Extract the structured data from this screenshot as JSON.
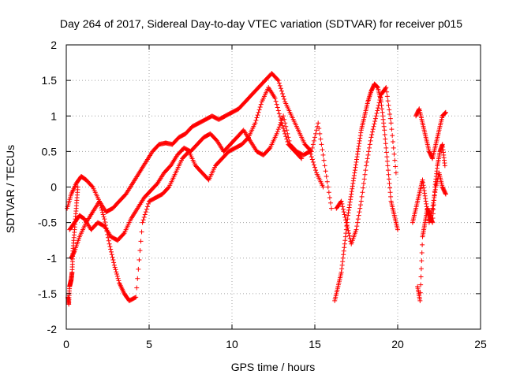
{
  "chart_data": {
    "type": "scatter",
    "title": "Day 264 of 2017, Sidereal Day-to-day VTEC variation (SDTVAR) for receiver p015",
    "xlabel": "GPS time / hours",
    "ylabel": "SDTVAR / TECUs",
    "xlim": [
      0,
      25
    ],
    "ylim": [
      -2,
      2
    ],
    "xticks": [
      "0",
      "5",
      "10",
      "15",
      "20",
      "25"
    ],
    "yticks": [
      "-2",
      "-1.5",
      "-1",
      "-0.5",
      "0",
      "0.5",
      "1",
      "1.5",
      "2"
    ],
    "grid": true,
    "marker": "+",
    "color": "#ff0000",
    "series": [
      {
        "name": "track-a",
        "x": [
          0.05,
          0.3,
          0.6,
          0.9,
          1.2,
          1.6,
          2.0,
          2.4,
          2.8,
          3.2,
          3.6,
          4.0,
          4.4,
          4.8,
          5.2,
          5.6,
          6.0,
          6.4,
          6.8,
          7.2,
          7.6,
          8.0,
          8.4,
          8.8,
          9.2,
          9.6,
          10.0,
          10.4,
          10.8,
          11.2,
          11.6,
          12.0,
          12.4,
          12.8,
          13.2,
          13.6,
          14.0,
          14.4,
          14.8,
          15.2,
          15.6,
          16.0
        ],
        "y": [
          -0.3,
          -0.1,
          0.05,
          0.15,
          0.1,
          0.0,
          -0.2,
          -0.35,
          -0.3,
          -0.2,
          -0.1,
          0.05,
          0.2,
          0.35,
          0.5,
          0.6,
          0.62,
          0.6,
          0.7,
          0.75,
          0.85,
          0.9,
          0.95,
          1.0,
          0.95,
          1.0,
          1.05,
          1.1,
          1.2,
          1.3,
          1.4,
          1.5,
          1.6,
          1.5,
          1.2,
          1.0,
          0.8,
          0.6,
          0.5,
          0.9,
          0.3,
          -0.3
        ]
      },
      {
        "name": "track-b",
        "x": [
          0.2,
          0.5,
          0.8,
          1.1,
          1.5,
          1.9,
          2.3,
          2.7,
          3.1,
          3.5,
          3.9,
          4.3,
          4.7,
          5.1,
          5.5,
          5.9,
          6.3,
          6.7,
          7.1,
          7.5,
          7.9,
          8.3,
          8.7,
          9.1,
          9.5,
          9.9,
          10.3,
          10.7,
          11.1,
          11.5,
          11.9,
          12.3,
          12.7,
          13.1,
          13.5,
          13.9,
          14.3,
          14.7,
          15.1,
          15.5
        ],
        "y": [
          -0.6,
          -0.5,
          -0.4,
          -0.45,
          -0.6,
          -0.5,
          -0.55,
          -0.7,
          -0.75,
          -0.65,
          -0.45,
          -0.3,
          -0.15,
          -0.05,
          0.05,
          0.2,
          0.3,
          0.45,
          0.55,
          0.5,
          0.6,
          0.7,
          0.75,
          0.65,
          0.5,
          0.6,
          0.7,
          0.8,
          0.65,
          0.5,
          0.45,
          0.55,
          0.75,
          1.0,
          0.6,
          0.5,
          0.45,
          0.5,
          0.2,
          0.0
        ]
      },
      {
        "name": "track-c",
        "x": [
          0.3,
          0.5,
          0.8,
          1.2,
          1.6,
          2.0,
          2.3,
          2.6,
          2.9,
          3.2,
          3.5,
          3.8,
          4.2,
          4.6,
          5.0,
          5.4,
          5.8,
          6.2,
          6.6,
          7.0,
          7.4,
          7.8,
          8.2,
          8.6,
          9.0,
          9.4,
          9.8,
          10.2,
          10.6,
          11.0,
          11.4,
          11.8,
          12.2,
          12.6,
          13.0,
          13.4,
          13.8,
          14.2
        ],
        "y": [
          -1.0,
          -0.9,
          -0.7,
          -0.5,
          -0.35,
          -0.2,
          -0.45,
          -0.8,
          -1.1,
          -1.35,
          -1.5,
          -1.6,
          -1.55,
          -0.5,
          -0.2,
          -0.15,
          -0.1,
          0.0,
          0.2,
          0.4,
          0.5,
          0.3,
          0.2,
          0.1,
          0.3,
          0.4,
          0.5,
          0.55,
          0.6,
          0.7,
          0.9,
          1.2,
          1.4,
          1.25,
          0.9,
          0.6,
          0.5,
          0.4
        ]
      },
      {
        "name": "track-d",
        "x": [
          0.1,
          0.15,
          0.2,
          0.25,
          0.3,
          0.35,
          0.4,
          0.5,
          0.6,
          0.7
        ],
        "y": [
          -1.55,
          -1.65,
          -1.4,
          -1.35,
          -1.3,
          -1.2,
          -0.9,
          -0.6,
          -0.3,
          0.0
        ]
      },
      {
        "name": "track-e",
        "x": [
          16.2,
          16.4,
          16.6,
          16.8,
          17.0,
          17.2,
          17.4,
          17.6,
          17.8,
          18.0,
          18.2,
          18.4,
          18.6,
          18.8,
          19.0,
          19.2,
          19.4,
          19.6,
          19.8,
          20.0
        ],
        "y": [
          -1.6,
          -1.4,
          -1.2,
          -0.8,
          -0.4,
          -0.1,
          0.2,
          0.5,
          0.8,
          1.0,
          1.2,
          1.35,
          1.45,
          1.4,
          1.2,
          0.8,
          0.3,
          -0.2,
          -0.4,
          -0.6
        ]
      },
      {
        "name": "track-f",
        "x": [
          16.3,
          16.6,
          16.9,
          17.2,
          17.5,
          17.8,
          18.1,
          18.4,
          18.7,
          19.0,
          19.3,
          19.6,
          19.9
        ],
        "y": [
          -0.3,
          -0.2,
          -0.5,
          -0.8,
          -0.6,
          -0.2,
          0.3,
          0.7,
          1.0,
          1.3,
          1.4,
          0.9,
          0.2
        ]
      },
      {
        "name": "track-g",
        "x": [
          21.2,
          21.35,
          21.5,
          21.65,
          21.8,
          21.95,
          22.1,
          22.25,
          22.4,
          22.55,
          22.7,
          22.85
        ],
        "y": [
          -1.4,
          -1.6,
          -0.7,
          -0.5,
          -0.3,
          -0.4,
          -0.5,
          0.0,
          0.3,
          0.5,
          0.6,
          0.3
        ]
      },
      {
        "name": "track-h",
        "x": [
          21.1,
          21.3,
          21.5,
          21.7,
          21.9,
          22.1,
          22.3,
          22.5,
          22.7,
          22.9
        ],
        "y": [
          1.0,
          1.1,
          0.9,
          0.7,
          0.5,
          0.4,
          0.6,
          0.8,
          1.0,
          1.05
        ]
      },
      {
        "name": "track-i",
        "x": [
          20.9,
          21.1,
          21.3,
          21.5,
          21.7,
          21.9,
          22.1,
          22.3,
          22.5,
          22.7,
          22.9
        ],
        "y": [
          -0.5,
          -0.3,
          -0.1,
          0.1,
          -0.2,
          -0.5,
          -0.3,
          0.0,
          0.2,
          0.0,
          -0.1
        ]
      }
    ]
  }
}
